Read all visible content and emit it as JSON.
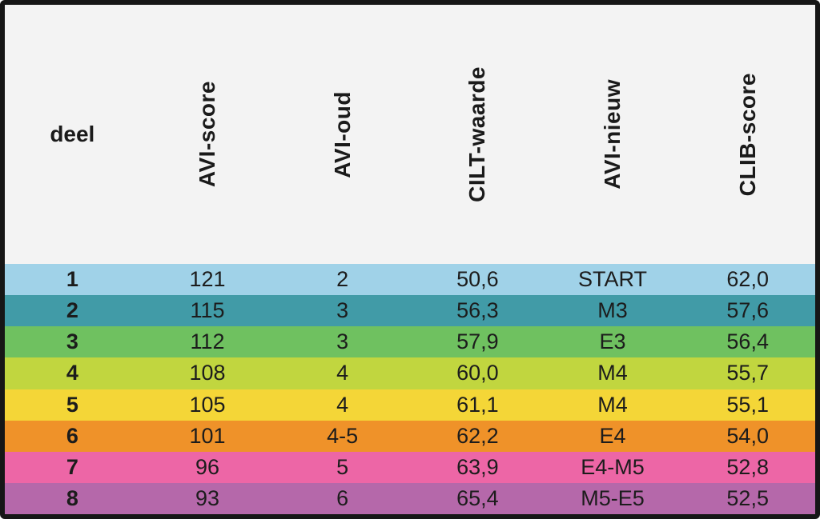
{
  "chart_data": {
    "type": "table",
    "title": "",
    "columns": [
      "deel",
      "AVI-score",
      "AVI-oud",
      "CILT-waarde",
      "AVI-nieuw",
      "CLIB-score"
    ],
    "rows": [
      [
        "1",
        "121",
        "2",
        "50,6",
        "START",
        "62,0"
      ],
      [
        "2",
        "115",
        "3",
        "56,3",
        "M3",
        "57,6"
      ],
      [
        "3",
        "112",
        "3",
        "57,9",
        "E3",
        "56,4"
      ],
      [
        "4",
        "108",
        "4",
        "60,0",
        "M4",
        "55,7"
      ],
      [
        "5",
        "105",
        "4",
        "61,1",
        "M4",
        "55,1"
      ],
      [
        "6",
        "101",
        "4-5",
        "62,2",
        "E4",
        "54,0"
      ],
      [
        "7",
        "96",
        "5",
        "63,9",
        "E4-M5",
        "52,8"
      ],
      [
        "8",
        "93",
        "6",
        "65,4",
        "M5-E5",
        "52,5"
      ]
    ],
    "row_colors": [
      "#a0d2e8",
      "#419ba7",
      "#6fc160",
      "#c1d63f",
      "#f4d637",
      "#ef9229",
      "#ed66a6",
      "#b568aa"
    ],
    "layout_hints": {
      "header_background": "#f3f3f3",
      "frame_border_color": "#161616",
      "text_color": "#1c1c1c",
      "rotated_headers": [
        "AVI-score",
        "AVI-oud",
        "CILT-waarde",
        "AVI-nieuw",
        "CLIB-score"
      ]
    }
  }
}
